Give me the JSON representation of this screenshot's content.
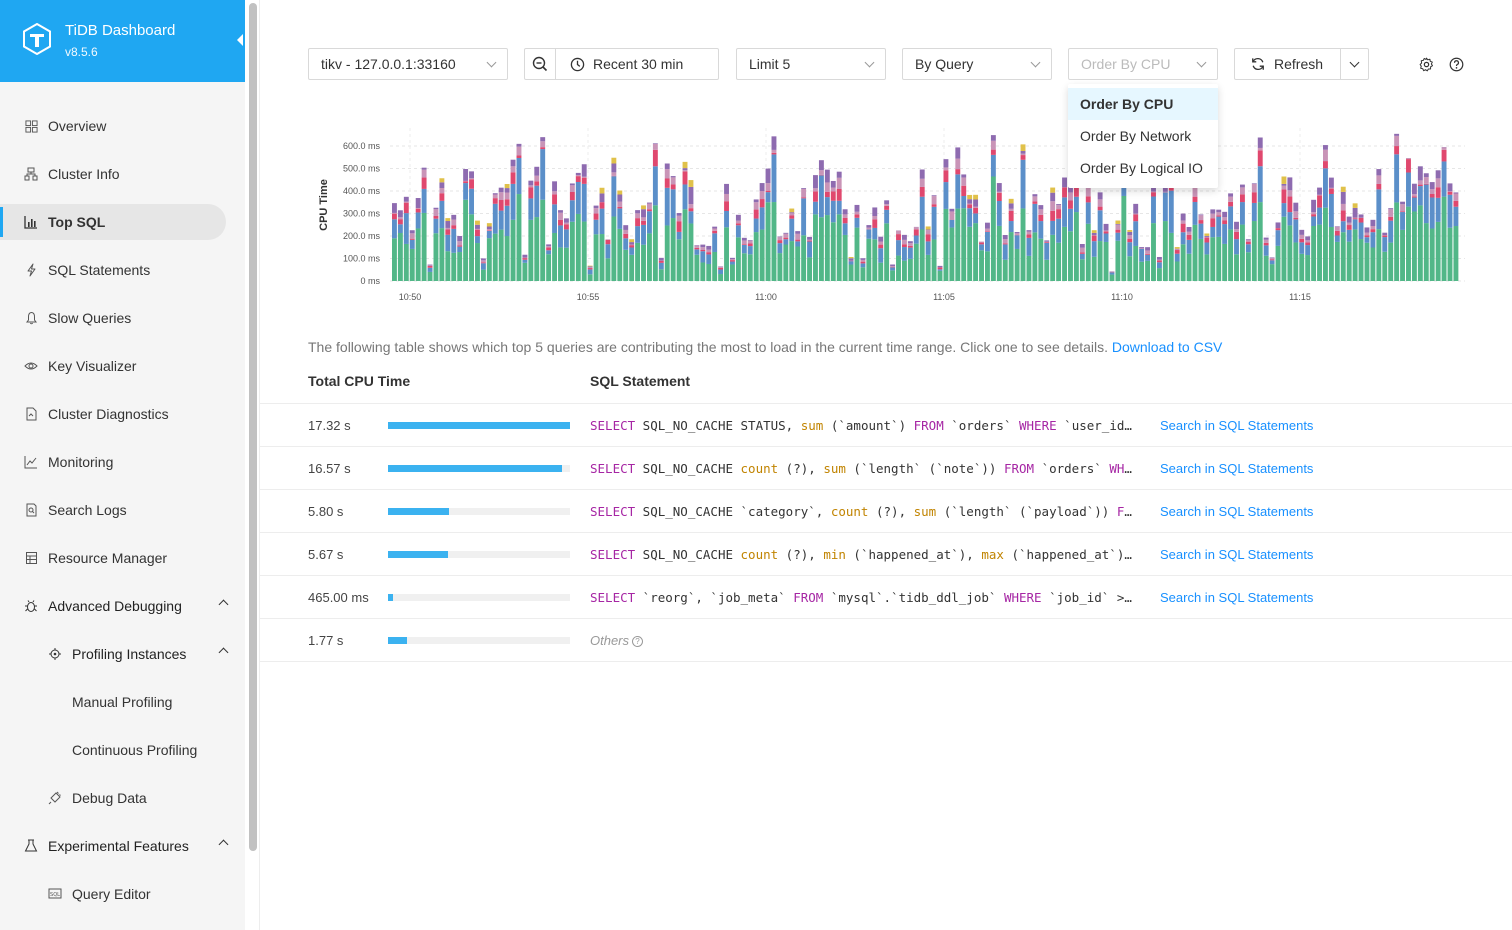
{
  "brand": {
    "title": "TiDB Dashboard",
    "version": "v8.5.6",
    "color": "#1fa7f2"
  },
  "sidebar": {
    "items": [
      {
        "label": "Overview",
        "icon": "grid-icon"
      },
      {
        "label": "Cluster Info",
        "icon": "cluster-icon"
      },
      {
        "label": "Top SQL",
        "icon": "bar-chart-icon",
        "active": true
      },
      {
        "label": "SQL Statements",
        "icon": "bolt-icon"
      },
      {
        "label": "Slow Queries",
        "icon": "bell-icon"
      },
      {
        "label": "Key Visualizer",
        "icon": "eye-icon"
      },
      {
        "label": "Cluster Diagnostics",
        "icon": "file-icon"
      },
      {
        "label": "Monitoring",
        "icon": "line-chart-icon"
      },
      {
        "label": "Search Logs",
        "icon": "search-file-icon"
      },
      {
        "label": "Resource Manager",
        "icon": "table-icon"
      },
      {
        "label": "Advanced Debugging",
        "icon": "bug-icon",
        "expanded": true
      },
      {
        "label": "Profiling Instances",
        "icon": "crosshair-icon",
        "expanded": true
      },
      {
        "label": "Manual Profiling"
      },
      {
        "label": "Continuous Profiling"
      },
      {
        "label": "Debug Data",
        "icon": "plug-icon"
      },
      {
        "label": "Experimental Features",
        "icon": "flask-icon",
        "expanded": true
      },
      {
        "label": "Query Editor",
        "icon": "sql-icon"
      }
    ]
  },
  "toolbar": {
    "instance": "tikv - 127.0.0.1:33160",
    "time_range": "Recent 30 min",
    "limit": "Limit 5",
    "group_by": "By Query",
    "order_by": "Order By CPU",
    "refresh": "Refresh"
  },
  "order_dropdown": {
    "options": [
      "Order By CPU",
      "Order By Network",
      "Order By Logical IO"
    ],
    "selected": "Order By CPU"
  },
  "chart_data": {
    "type": "bar",
    "stacked": true,
    "ylabel": "CPU Time",
    "y_ticks": [
      "0 ms",
      "100.0 ms",
      "200.0 ms",
      "300.0 ms",
      "400.0 ms",
      "500.0 ms",
      "600.0 ms"
    ],
    "x_ticks": [
      "10:50",
      "10:55",
      "11:00",
      "11:05",
      "11:10",
      "11:15"
    ],
    "ylim": [
      0,
      680
    ],
    "series_colors": [
      "#52b788",
      "#5b8fc9",
      "#e0486e",
      "#c994b7",
      "#8e6bb0",
      "#e0c14a"
    ],
    "grid": true
  },
  "description": {
    "text": "The following table shows which top 5 queries are contributing the most to load in the current time range. Click one to see details.",
    "link": "Download to CSV"
  },
  "table": {
    "headers": [
      "Total CPU Time",
      "SQL Statement"
    ],
    "rows": [
      {
        "value": "17.32 s",
        "fraction": 1.0,
        "sql_html": "<span class='kw'>SELECT</span> SQL_NO_CACHE STATUS, <span class='fn'>sum</span> (`amount`) <span class='kw'>FROM</span> `orders` <span class='kw'>WHERE</span> `user_id` = ?",
        "action": "Search in SQL Statements"
      },
      {
        "value": "16.57 s",
        "fraction": 0.957,
        "sql_html": "<span class='kw'>SELECT</span> SQL_NO_CACHE <span class='fn'>count</span> (?), <span class='fn'>sum</span> (`length` (`note`)) <span class='kw'>FROM</span> `orders` <span class='kw'>WHERE</span> ?",
        "action": "Search in SQL Statements"
      },
      {
        "value": "5.80 s",
        "fraction": 0.335,
        "sql_html": "<span class='kw'>SELECT</span> SQL_NO_CACHE `category`, <span class='fn'>count</span> (?), <span class='fn'>sum</span> (`length` (`payload`)) <span class='kw'>FROM</span> ?",
        "action": "Search in SQL Statements"
      },
      {
        "value": "5.67 s",
        "fraction": 0.327,
        "sql_html": "<span class='kw'>SELECT</span> SQL_NO_CACHE <span class='fn'>count</span> (?), <span class='fn'>min</span> (`happened_at`), <span class='fn'>max</span> (`happened_at`) <span class='kw'>FROM</span> ?",
        "action": "Search in SQL Statements"
      },
      {
        "value": "465.00 ms",
        "fraction": 0.027,
        "sql_html": "<span class='kw'>SELECT</span> `reorg`, `job_meta` <span class='kw'>FROM</span> `mysql`.`tidb_ddl_job` <span class='kw'>WHERE</span> `job_id` >= ?",
        "action": "Search in SQL Statements"
      }
    ],
    "others": {
      "value": "1.77 s",
      "fraction": 0.102,
      "label": "Others"
    }
  }
}
